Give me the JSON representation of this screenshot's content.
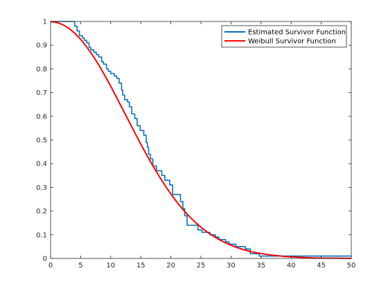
{
  "chart_data": {
    "type": "line",
    "title": "",
    "xlabel": "",
    "ylabel": "",
    "xlim": [
      0,
      50
    ],
    "ylim": [
      0,
      1
    ],
    "x_ticks": [
      0,
      5,
      10,
      15,
      20,
      25,
      30,
      35,
      40,
      45,
      50
    ],
    "x_tick_labels": [
      "0",
      "5",
      "10",
      "15",
      "20",
      "25",
      "30",
      "35",
      "40",
      "45",
      "50"
    ],
    "y_ticks": [
      0,
      0.1,
      0.2,
      0.3,
      0.4,
      0.5,
      0.6,
      0.7,
      0.8,
      0.9,
      1
    ],
    "y_tick_labels": [
      "0",
      "0.1",
      "0.2",
      "0.3",
      "0.4",
      "0.5",
      "0.6",
      "0.7",
      "0.8",
      "0.9",
      "1"
    ],
    "grid": false,
    "legend_position": "top-right",
    "series": [
      {
        "name": "Estimated Survivor Function",
        "style": "step",
        "color": "#0072BD",
        "x": [
          0,
          4.0,
          4.4,
          4.8,
          5.3,
          5.6,
          6.0,
          6.4,
          6.7,
          7.2,
          7.6,
          8.0,
          8.5,
          8.8,
          9.3,
          9.6,
          10.0,
          10.6,
          11.0,
          11.4,
          11.8,
          12.0,
          12.3,
          12.8,
          13.1,
          13.5,
          14.0,
          14.4,
          14.9,
          15.5,
          15.9,
          16.1,
          16.3,
          16.6,
          17.0,
          17.6,
          18.5,
          19.0,
          19.8,
          20.3,
          21.6,
          22.0,
          22.3,
          22.7,
          24.5,
          25.2,
          26.5,
          27.4,
          28.0,
          29.1,
          29.7,
          30.8,
          32.4,
          33.2,
          34.7,
          50
        ],
        "y": [
          1.0,
          0.98,
          0.96,
          0.94,
          0.93,
          0.92,
          0.91,
          0.89,
          0.88,
          0.87,
          0.86,
          0.85,
          0.83,
          0.82,
          0.8,
          0.79,
          0.78,
          0.77,
          0.76,
          0.74,
          0.71,
          0.69,
          0.67,
          0.66,
          0.64,
          0.61,
          0.59,
          0.56,
          0.54,
          0.52,
          0.49,
          0.47,
          0.44,
          0.42,
          0.39,
          0.37,
          0.35,
          0.33,
          0.31,
          0.27,
          0.24,
          0.21,
          0.18,
          0.14,
          0.12,
          0.11,
          0.1,
          0.09,
          0.08,
          0.07,
          0.06,
          0.05,
          0.04,
          0.02,
          0.01,
          0.01
        ]
      },
      {
        "name": "Weibull Survivor Function",
        "style": "line",
        "color": "#FF0000",
        "x": [
          0,
          1,
          2,
          3,
          4,
          5,
          6,
          7,
          8,
          9,
          10,
          11,
          12,
          13,
          14,
          15,
          16,
          17,
          18,
          19,
          20,
          21,
          22,
          23,
          24,
          25,
          26,
          27,
          28,
          29,
          30,
          31,
          32,
          33,
          34,
          35,
          36,
          37,
          38,
          39,
          40,
          42,
          44,
          46,
          48,
          50
        ],
        "y": [
          1.0,
          0.996,
          0.987,
          0.972,
          0.951,
          0.925,
          0.893,
          0.857,
          0.817,
          0.773,
          0.727,
          0.678,
          0.629,
          0.58,
          0.531,
          0.482,
          0.436,
          0.391,
          0.349,
          0.309,
          0.272,
          0.238,
          0.207,
          0.179,
          0.154,
          0.132,
          0.112,
          0.095,
          0.08,
          0.067,
          0.056,
          0.046,
          0.038,
          0.031,
          0.025,
          0.021,
          0.017,
          0.013,
          0.011,
          0.008,
          0.007,
          0.004,
          0.002,
          0.001,
          0.001,
          0.0
        ]
      }
    ]
  }
}
